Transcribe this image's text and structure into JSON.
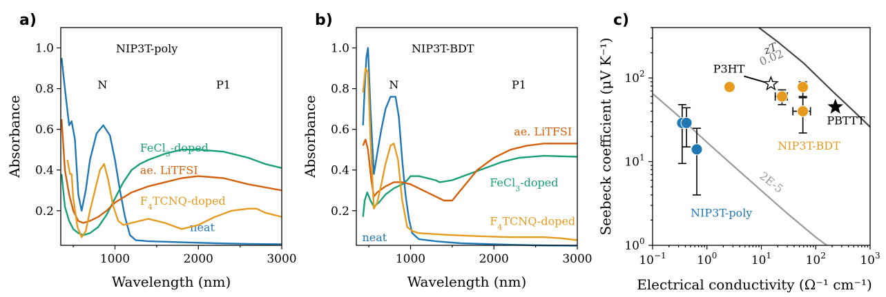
{
  "chart_data": [
    {
      "panel_label": "a)",
      "type": "line",
      "title": "NIP3T-poly",
      "xlabel": "Wavelength (nm)",
      "ylabel": "Absorbance",
      "xlim": [
        350,
        3000
      ],
      "ylim": [
        0.03,
        1.1
      ],
      "xticks": [
        "1000",
        "2000",
        "3000"
      ],
      "yticks": [
        "0.2",
        "0.4",
        "0.6",
        "0.8",
        "1.0"
      ],
      "annotations": [
        {
          "text": "N",
          "x": 850,
          "y": 0.8
        },
        {
          "text": "P1",
          "x": 2300,
          "y": 0.8
        }
      ],
      "series": [
        {
          "name": "neat",
          "label_parts": [
            "neat"
          ],
          "color": "#1f77b4",
          "label_at": [
            1900,
            0.1
          ],
          "points": [
            [
              360,
              0.95
            ],
            [
              400,
              0.8
            ],
            [
              450,
              0.62
            ],
            [
              480,
              0.64
            ],
            [
              520,
              0.55
            ],
            [
              560,
              0.28
            ],
            [
              600,
              0.2
            ],
            [
              650,
              0.3
            ],
            [
              700,
              0.45
            ],
            [
              780,
              0.58
            ],
            [
              860,
              0.62
            ],
            [
              940,
              0.57
            ],
            [
              1000,
              0.45
            ],
            [
              1060,
              0.3
            ],
            [
              1120,
              0.17
            ],
            [
              1180,
              0.08
            ],
            [
              1250,
              0.055
            ],
            [
              1400,
              0.05
            ],
            [
              1800,
              0.045
            ],
            [
              2200,
              0.04
            ],
            [
              2600,
              0.037
            ],
            [
              3000,
              0.035
            ]
          ]
        },
        {
          "name": "FeCl3-doped",
          "label_parts": [
            "FeCl",
            "3",
            "-doped"
          ],
          "color": "#169e77",
          "label_at": [
            1300,
            0.49
          ],
          "points": [
            [
              360,
              0.38
            ],
            [
              400,
              0.22
            ],
            [
              450,
              0.15
            ],
            [
              500,
              0.11
            ],
            [
              560,
              0.09
            ],
            [
              620,
              0.08
            ],
            [
              700,
              0.09
            ],
            [
              800,
              0.12
            ],
            [
              900,
              0.18
            ],
            [
              1000,
              0.26
            ],
            [
              1100,
              0.34
            ],
            [
              1200,
              0.4
            ],
            [
              1300,
              0.43
            ],
            [
              1400,
              0.45
            ],
            [
              1600,
              0.48
            ],
            [
              1800,
              0.5
            ],
            [
              2000,
              0.5
            ],
            [
              2300,
              0.49
            ],
            [
              2600,
              0.46
            ],
            [
              2800,
              0.43
            ],
            [
              3000,
              0.41
            ]
          ]
        },
        {
          "name": "ae. LiTFSI",
          "label_parts": [
            "ae. LiTFSI"
          ],
          "color": "#d35f0a",
          "label_at": [
            1300,
            0.38
          ],
          "points": [
            [
              360,
              0.65
            ],
            [
              400,
              0.4
            ],
            [
              450,
              0.28
            ],
            [
              500,
              0.2
            ],
            [
              560,
              0.15
            ],
            [
              620,
              0.14
            ],
            [
              700,
              0.15
            ],
            [
              800,
              0.17
            ],
            [
              900,
              0.2
            ],
            [
              1000,
              0.24
            ],
            [
              1200,
              0.29
            ],
            [
              1400,
              0.32
            ],
            [
              1600,
              0.34
            ],
            [
              1800,
              0.36
            ],
            [
              2000,
              0.37
            ],
            [
              2300,
              0.36
            ],
            [
              2600,
              0.33
            ],
            [
              3000,
              0.3
            ]
          ]
        },
        {
          "name": "F4TCNQ-doped",
          "label_parts": [
            "F",
            "4",
            "TCNQ-doped"
          ],
          "color": "#e69a1e",
          "label_at": [
            1300,
            0.23
          ],
          "points": [
            [
              430,
              0.45
            ],
            [
              460,
              0.38
            ],
            [
              480,
              0.38
            ],
            [
              500,
              0.26
            ],
            [
              550,
              0.12
            ],
            [
              600,
              0.07
            ],
            [
              650,
              0.1
            ],
            [
              700,
              0.2
            ],
            [
              760,
              0.3
            ],
            [
              820,
              0.4
            ],
            [
              870,
              0.43
            ],
            [
              920,
              0.35
            ],
            [
              980,
              0.22
            ],
            [
              1040,
              0.15
            ],
            [
              1100,
              0.13
            ],
            [
              1200,
              0.14
            ],
            [
              1400,
              0.16
            ],
            [
              1600,
              0.14
            ],
            [
              1800,
              0.11
            ],
            [
              2000,
              0.13
            ],
            [
              2200,
              0.17
            ],
            [
              2400,
              0.2
            ],
            [
              2600,
              0.21
            ],
            [
              2700,
              0.21
            ],
            [
              2800,
              0.19
            ],
            [
              3000,
              0.17
            ]
          ]
        }
      ]
    },
    {
      "panel_label": "b)",
      "type": "line",
      "title": "NIP3T-BDT",
      "xlabel": "Wavelength (nm)",
      "ylabel": "Absorbance",
      "xlim": [
        350,
        3000
      ],
      "ylim": [
        0.03,
        1.1
      ],
      "xticks": [
        "1000",
        "2000",
        "3000"
      ],
      "yticks": [
        "0.2",
        "0.4",
        "0.6",
        "0.8",
        "1.0"
      ],
      "annotations": [
        {
          "text": "N",
          "x": 800,
          "y": 0.8
        },
        {
          "text": "P1",
          "x": 2300,
          "y": 0.8
        }
      ],
      "series": [
        {
          "name": "neat",
          "label_parts": [
            "neat"
          ],
          "color": "#1f77b4",
          "label_at": [
            420,
            0.05
          ],
          "points": [
            [
              430,
              0.62
            ],
            [
              450,
              0.8
            ],
            [
              470,
              0.95
            ],
            [
              490,
              1.0
            ],
            [
              520,
              0.7
            ],
            [
              560,
              0.38
            ],
            [
              600,
              0.48
            ],
            [
              650,
              0.6
            ],
            [
              700,
              0.7
            ],
            [
              760,
              0.76
            ],
            [
              820,
              0.76
            ],
            [
              860,
              0.66
            ],
            [
              900,
              0.45
            ],
            [
              940,
              0.28
            ],
            [
              980,
              0.16
            ],
            [
              1020,
              0.09
            ],
            [
              1100,
              0.06
            ],
            [
              1300,
              0.05
            ],
            [
              1600,
              0.04
            ],
            [
              2000,
              0.035
            ],
            [
              2500,
              0.03
            ],
            [
              3000,
              0.028
            ]
          ]
        },
        {
          "name": "FeCl3-doped",
          "label_parts": [
            "FeCl",
            "3",
            "-doped"
          ],
          "color": "#169e77",
          "label_at": [
            1950,
            0.32
          ],
          "points": [
            [
              430,
              0.17
            ],
            [
              450,
              0.25
            ],
            [
              480,
              0.29
            ],
            [
              520,
              0.25
            ],
            [
              560,
              0.22
            ],
            [
              620,
              0.24
            ],
            [
              700,
              0.28
            ],
            [
              800,
              0.31
            ],
            [
              900,
              0.33
            ],
            [
              960,
              0.35
            ],
            [
              1000,
              0.37
            ],
            [
              1100,
              0.37
            ],
            [
              1200,
              0.36
            ],
            [
              1300,
              0.35
            ],
            [
              1350,
              0.34
            ],
            [
              1500,
              0.35
            ],
            [
              1700,
              0.38
            ],
            [
              1900,
              0.41
            ],
            [
              2100,
              0.44
            ],
            [
              2300,
              0.46
            ],
            [
              2600,
              0.47
            ],
            [
              3000,
              0.465
            ]
          ]
        },
        {
          "name": "ae. LiTFSI",
          "label_parts": [
            "ae. LiTFSI"
          ],
          "color": "#d35f0a",
          "label_at": [
            2240,
            0.57
          ],
          "points": [
            [
              430,
              0.52
            ],
            [
              460,
              0.55
            ],
            [
              490,
              0.5
            ],
            [
              530,
              0.35
            ],
            [
              560,
              0.27
            ],
            [
              600,
              0.29
            ],
            [
              700,
              0.32
            ],
            [
              800,
              0.34
            ],
            [
              900,
              0.34
            ],
            [
              1000,
              0.33
            ],
            [
              1100,
              0.31
            ],
            [
              1200,
              0.29
            ],
            [
              1300,
              0.27
            ],
            [
              1400,
              0.25
            ],
            [
              1500,
              0.25
            ],
            [
              1600,
              0.3
            ],
            [
              1800,
              0.4
            ],
            [
              2000,
              0.46
            ],
            [
              2200,
              0.5
            ],
            [
              2400,
              0.52
            ],
            [
              2600,
              0.53
            ],
            [
              3000,
              0.53
            ]
          ]
        },
        {
          "name": "F4TCNQ-doped",
          "label_parts": [
            "F",
            "4",
            "TCNQ-doped"
          ],
          "color": "#e69a1e",
          "label_at": [
            1950,
            0.13
          ],
          "points": [
            [
              430,
              0.78
            ],
            [
              460,
              0.9
            ],
            [
              490,
              0.88
            ],
            [
              520,
              0.55
            ],
            [
              560,
              0.21
            ],
            [
              600,
              0.24
            ],
            [
              650,
              0.33
            ],
            [
              700,
              0.43
            ],
            [
              760,
              0.52
            ],
            [
              800,
              0.53
            ],
            [
              850,
              0.45
            ],
            [
              900,
              0.25
            ],
            [
              960,
              0.12
            ],
            [
              1020,
              0.1
            ],
            [
              1100,
              0.09
            ],
            [
              1300,
              0.085
            ],
            [
              1500,
              0.08
            ],
            [
              1800,
              0.075
            ],
            [
              2200,
              0.07
            ],
            [
              2600,
              0.07
            ],
            [
              2800,
              0.065
            ],
            [
              3000,
              0.055
            ]
          ]
        }
      ]
    },
    {
      "panel_label": "c)",
      "type": "scatter",
      "xscale": "log",
      "yscale": "log",
      "xlabel": "Electrical conductivity (Ω⁻¹ cm⁻¹)",
      "ylabel": "Seebeck coefficient (μV K⁻¹)",
      "xlim": [
        0.1,
        1000
      ],
      "ylim": [
        1,
        400
      ],
      "xticks": [
        {
          "value": 0.1,
          "base": "10",
          "exp": "−1"
        },
        {
          "value": 1,
          "base": "10",
          "exp": "0"
        },
        {
          "value": 10,
          "base": "10",
          "exp": "1"
        },
        {
          "value": 100,
          "base": "10",
          "exp": "2"
        },
        {
          "value": 1000,
          "base": "10",
          "exp": "3"
        }
      ],
      "yticks": [
        {
          "value": 1,
          "base": "10",
          "exp": "0"
        },
        {
          "value": 10,
          "base": "10",
          "exp": "1"
        },
        {
          "value": 100,
          "base": "10",
          "exp": "2"
        }
      ],
      "zt_curves": [
        {
          "label": "zT",
          "sublabel": "0.02",
          "color": "#444444",
          "points": [
            [
              9,
              400
            ],
            [
              20,
              270
            ],
            [
              60,
              150
            ],
            [
              200,
              70
            ],
            [
              500,
              40
            ],
            [
              1000,
              26
            ]
          ]
        },
        {
          "label": "2E-5",
          "color": "#999999",
          "points": [
            [
              0.1,
              65
            ],
            [
              0.3,
              35
            ],
            [
              1,
              17
            ],
            [
              3,
              9
            ],
            [
              10,
              4.5
            ],
            [
              30,
              2.4
            ],
            [
              100,
              1.25
            ],
            [
              160,
              1.0
            ]
          ]
        }
      ],
      "series": [
        {
          "name": "NIP3T-poly",
          "color": "#1f77b4",
          "points": [
            {
              "x": 0.35,
              "y": 29,
              "yerr_low": 9.5,
              "yerr_high": 48
            },
            {
              "x": 0.42,
              "y": 29,
              "yerr_low": 15,
              "yerr_high": 44
            },
            {
              "x": 0.65,
              "y": 14,
              "yerr_low": 4,
              "yerr_high": 25
            }
          ]
        },
        {
          "name": "NIP3T-BDT",
          "color": "#e69a1e",
          "points": [
            {
              "x": 2.6,
              "y": 78,
              "yerr_low": 70,
              "yerr_high": 86
            },
            {
              "x": 24,
              "y": 60,
              "xerr_low": 18,
              "xerr_high": 30,
              "yerr_low": 48,
              "yerr_high": 72
            },
            {
              "x": 58,
              "y": 78,
              "yerr_low": 60,
              "yerr_high": 90
            },
            {
              "x": 58,
              "y": 40,
              "xerr_low": 38,
              "xerr_high": 80,
              "yerr_low": 22,
              "yerr_high": 58
            }
          ]
        }
      ],
      "references": [
        {
          "name": "P3HT",
          "x": 15,
          "y": 85,
          "marker": "open-star"
        },
        {
          "name": "PBTTT",
          "x": 230,
          "y": 45,
          "marker": "filled-star"
        }
      ]
    }
  ]
}
